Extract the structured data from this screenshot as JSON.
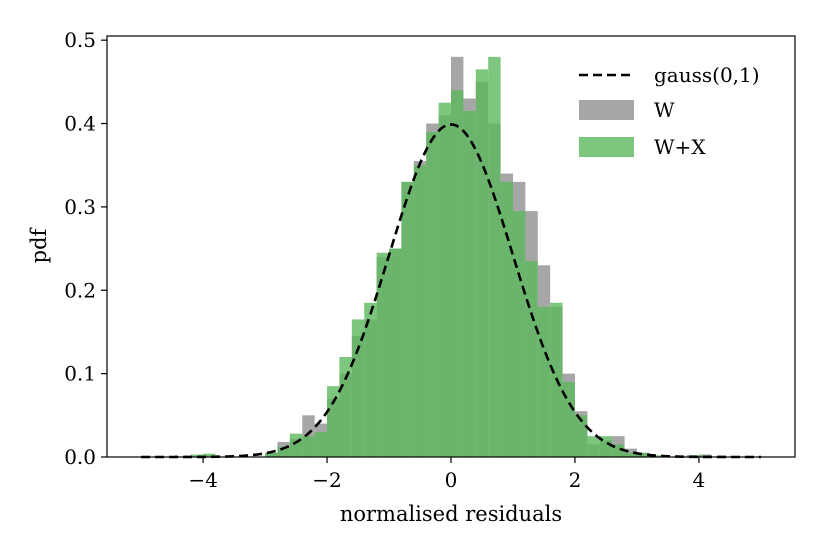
{
  "chart_data": {
    "type": "histogram",
    "title": "",
    "xlabel": "normalised residuals",
    "ylabel": "pdf",
    "xlim": [
      -5.55,
      5.55
    ],
    "ylim": [
      0,
      0.505
    ],
    "xticks": [
      -4,
      -2,
      0,
      2,
      4
    ],
    "xtick_labels": [
      "−4",
      "−2",
      "0",
      "2",
      "4"
    ],
    "yticks": [
      0.0,
      0.1,
      0.2,
      0.3,
      0.4,
      0.5
    ],
    "ytick_labels": [
      "0.0",
      "0.1",
      "0.2",
      "0.3",
      "0.4",
      "0.5"
    ],
    "bin_edges": [
      -5.0,
      -4.8,
      -4.6,
      -4.4,
      -4.2,
      -4.0,
      -3.8,
      -3.6,
      -3.4,
      -3.2,
      -3.0,
      -2.8,
      -2.6,
      -2.4,
      -2.2,
      -2.0,
      -1.8,
      -1.6,
      -1.4,
      -1.2,
      -1.0,
      -0.8,
      -0.6,
      -0.4,
      -0.2,
      0.0,
      0.2,
      0.4,
      0.6,
      0.8,
      1.0,
      1.2,
      1.4,
      1.6,
      1.8,
      2.0,
      2.2,
      2.4,
      2.6,
      2.8,
      3.0,
      3.2,
      3.4,
      3.6,
      3.8,
      4.0,
      4.2,
      4.4,
      4.6,
      4.8,
      5.0
    ],
    "series": [
      {
        "name": "W",
        "color": "#a6a6a6",
        "values": [
          0.0,
          0.0,
          0.0,
          0.0,
          0.0,
          0.002,
          0.0,
          0.0,
          0.0,
          0.0,
          0.005,
          0.018,
          0.022,
          0.05,
          0.04,
          0.07,
          0.1,
          0.145,
          0.165,
          0.24,
          0.25,
          0.33,
          0.355,
          0.4,
          0.41,
          0.48,
          0.43,
          0.45,
          0.4,
          0.34,
          0.33,
          0.295,
          0.23,
          0.18,
          0.1,
          0.055,
          0.015,
          0.02,
          0.025,
          0.01,
          0.005,
          0.0,
          0.0,
          0.0,
          0.002,
          0.003,
          0.0,
          0.0,
          0.0,
          0.0
        ]
      },
      {
        "name": "W+X",
        "color": "#5cb85c",
        "values": [
          0.0,
          0.0,
          0.0,
          0.0,
          0.003,
          0.004,
          0.0,
          0.0,
          0.0,
          0.0,
          0.005,
          0.012,
          0.028,
          0.025,
          0.03,
          0.085,
          0.12,
          0.165,
          0.185,
          0.245,
          0.25,
          0.33,
          0.35,
          0.39,
          0.425,
          0.44,
          0.415,
          0.465,
          0.48,
          0.33,
          0.295,
          0.235,
          0.18,
          0.185,
          0.09,
          0.05,
          0.025,
          0.025,
          0.015,
          0.005,
          0.005,
          0.002,
          0.0,
          0.0,
          0.002,
          0.002,
          0.0,
          0.0,
          0.0,
          0.0
        ]
      }
    ],
    "curve": {
      "name": "gauss(0,1)",
      "style": "dashed",
      "color": "#000000",
      "mean": 0,
      "sigma": 1,
      "x_range": [
        -5,
        5
      ]
    },
    "legend": {
      "position": "top-right",
      "entries": [
        {
          "label": "gauss(0,1)",
          "kind": "dashed-line",
          "color": "#000000"
        },
        {
          "label": "W",
          "kind": "patch",
          "color": "#a6a6a6"
        },
        {
          "label": "W+X",
          "kind": "patch",
          "color": "#5cb85c"
        }
      ]
    }
  }
}
